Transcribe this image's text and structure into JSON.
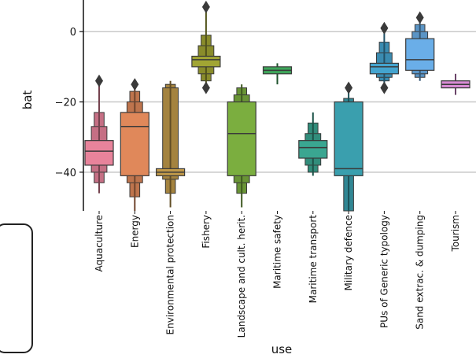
{
  "chart_data": {
    "type": "boxen",
    "xlabel": "use",
    "ylabel": "bat",
    "ylim": [
      -51,
      9
    ],
    "yticks": [
      0,
      -20,
      -40
    ],
    "grid": "horizontal",
    "categories": [
      "Aquaculture",
      "Energy",
      "Environmental protection",
      "Fishery",
      "Landscape and cult. herit.",
      "Maritime safety",
      "Maritime transport",
      "Military defence",
      "PUs of Generic typology",
      "Sand extrac. & dumping",
      "Tourism"
    ],
    "series": [
      {
        "color": "#e8839b",
        "median": -34,
        "q1": -38,
        "q3": -31,
        "min": -46,
        "max": -14,
        "levels": [
          [
            -40,
            -27
          ],
          [
            -43,
            -23
          ]
        ],
        "outliers": [
          -14
        ]
      },
      {
        "color": "#e0885a",
        "median": -27,
        "q1": -41,
        "q3": -23,
        "min": -51,
        "max": -15,
        "levels": [
          [
            -43,
            -20
          ],
          [
            -47,
            -17
          ]
        ],
        "outliers": [
          -15
        ]
      },
      {
        "color": "#c19a4a",
        "median": -40,
        "q1": -41,
        "q3": -39,
        "min": -50,
        "max": -14,
        "levels": [
          [
            -42,
            -16
          ],
          [
            -46,
            -15
          ]
        ],
        "outliers": []
      },
      {
        "color": "#a1a533",
        "median": -8,
        "q1": -10,
        "q3": -7,
        "min": -16,
        "max": 7,
        "levels": [
          [
            -12,
            -4
          ],
          [
            -14,
            -1
          ]
        ],
        "outliers": [
          7,
          -16
        ]
      },
      {
        "color": "#7bae3f",
        "median": -29,
        "q1": -41,
        "q3": -20,
        "min": -50,
        "max": -15,
        "levels": [
          [
            -43,
            -18
          ],
          [
            -46,
            -16
          ]
        ],
        "outliers": []
      },
      {
        "color": "#3ea65a",
        "median": -11,
        "q1": -12,
        "q3": -10,
        "min": -15,
        "max": -9,
        "levels": [],
        "outliers": []
      },
      {
        "color": "#3aa691",
        "median": -33,
        "q1": -36,
        "q3": -31,
        "min": -41,
        "max": -23,
        "levels": [
          [
            -38,
            -29
          ],
          [
            -40,
            -26
          ]
        ],
        "outliers": []
      },
      {
        "color": "#3a9fae",
        "median": -39,
        "q1": -41,
        "q3": -20,
        "min": -51,
        "max": -16,
        "levels": [
          [
            -51,
            -19
          ]
        ],
        "outliers": [
          -16
        ]
      },
      {
        "color": "#44a4cf",
        "median": -10,
        "q1": -12,
        "q3": -9,
        "min": -16,
        "max": 1,
        "levels": [
          [
            -13,
            -6
          ],
          [
            -14,
            -3
          ]
        ],
        "outliers": [
          1,
          -16
        ]
      },
      {
        "color": "#6aaee8",
        "median": -8,
        "q1": -11,
        "q3": -2,
        "min": -14,
        "max": 4,
        "levels": [
          [
            -12,
            0
          ],
          [
            -13,
            2
          ]
        ],
        "outliers": [
          4
        ]
      },
      {
        "color": "#d68ad2",
        "median": -15,
        "q1": -16,
        "q3": -14,
        "min": -18,
        "max": -12,
        "levels": [],
        "outliers": []
      }
    ]
  }
}
